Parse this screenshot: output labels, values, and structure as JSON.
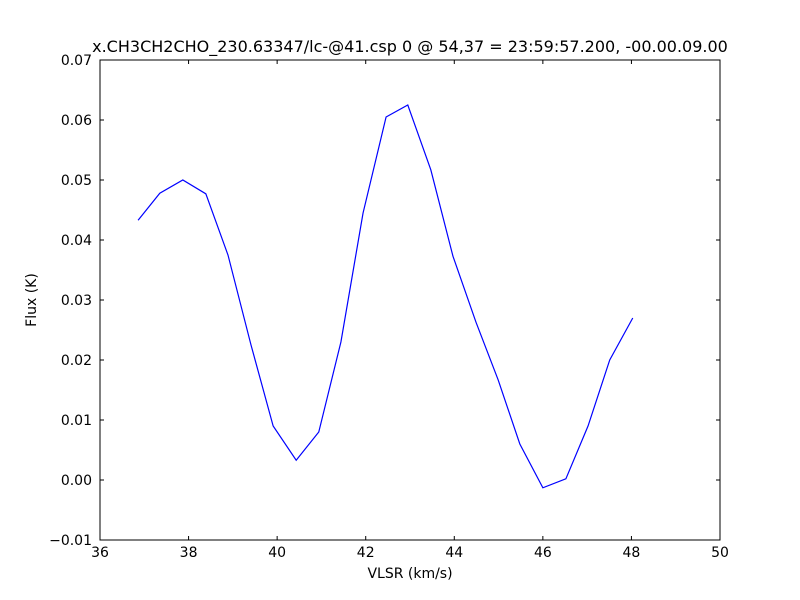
{
  "chart_data": {
    "type": "line",
    "title": "x.CH3CH2CHO_230.63347/lc-@41.csp 0 @ 54,37 = 23:59:57.200, -00.00.09.00",
    "x_label": "VLSR (km/s)",
    "y_label": "Flux (K)",
    "xlim": [
      36,
      50
    ],
    "ylim": [
      -0.01,
      0.07
    ],
    "xticks": [
      36,
      38,
      40,
      42,
      44,
      46,
      48,
      50
    ],
    "yticks": [
      {
        "value": -0.01,
        "label": "−0.01"
      },
      {
        "value": 0,
        "label": "0.00"
      },
      0.01,
      0.02,
      0.03,
      0.04,
      0.05,
      0.06,
      0.07
    ],
    "grid": false,
    "series": [
      {
        "color": "#0000ff",
        "x": [
          36.86,
          37.35,
          37.87,
          38.39,
          38.89,
          39.41,
          39.91,
          40.43,
          40.94,
          41.44,
          41.94,
          42.46,
          42.95,
          43.47,
          43.97,
          44.49,
          44.99,
          45.48,
          46.0,
          46.52,
          47.02,
          47.51,
          48.03
        ],
        "values": [
          0.0433,
          0.0478,
          0.05,
          0.0477,
          0.0375,
          0.0225,
          0.009,
          0.0033,
          0.008,
          0.023,
          0.0445,
          0.0605,
          0.0625,
          0.0517,
          0.0373,
          0.0263,
          0.0167,
          0.006,
          -0.0013,
          0.0002,
          0.009,
          0.02,
          0.027
        ]
      }
    ]
  }
}
